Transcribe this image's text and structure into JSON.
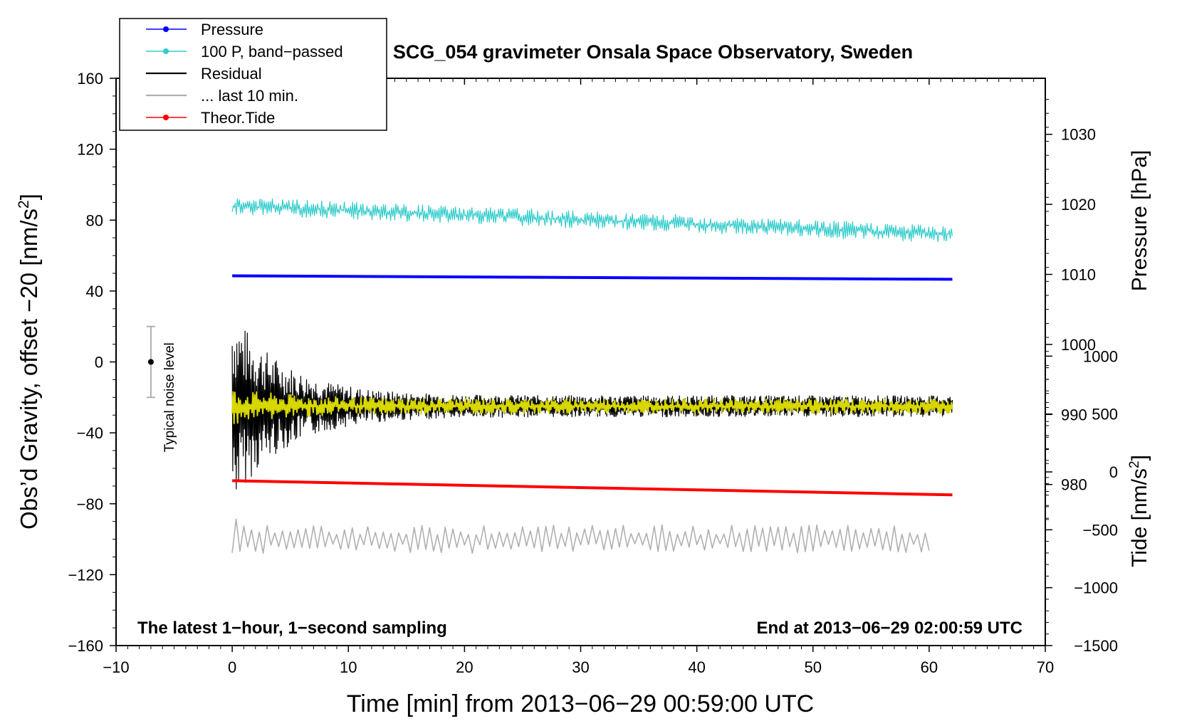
{
  "chart_data": {
    "type": "line",
    "title": "SCG_054 gravimeter Onsala Space Observatory, Sweden",
    "xlabel": "Time [min] from 2013−06−29 00:59:00 UTC",
    "ylabel_left_main": "Obs’d Gravity, offset −20 [nm/s",
    "ylabel_left_sup": "2",
    "ylabel_left_end": "]",
    "ylabel_right_pressure": "Pressure [hPa]",
    "ylabel_right_tide_main": "Tide [nm/s",
    "ylabel_right_tide_sup": "2",
    "ylabel_right_tide_end": "]",
    "xlim": [
      -10,
      70
    ],
    "ylim": [
      -160,
      160
    ],
    "pressure_axis": {
      "min": 957,
      "max": 1038
    },
    "tide_axis": {
      "min": -1500,
      "max": 3400
    },
    "x_ticks": [
      -10,
      0,
      10,
      20,
      30,
      40,
      50,
      60,
      70
    ],
    "x_tick_labels": [
      "−10",
      "0",
      "10",
      "20",
      "30",
      "40",
      "50",
      "60",
      "70"
    ],
    "y_ticks": [
      -160,
      -120,
      -80,
      -40,
      0,
      40,
      80,
      120,
      160
    ],
    "y_tick_labels": [
      "−160",
      "−120",
      "−80",
      "−40",
      "0",
      "40",
      "80",
      "120",
      "160"
    ],
    "pressure_ticks": [
      980,
      990,
      1000,
      1010,
      1020,
      1030
    ],
    "pressure_tick_labels": [
      "980",
      "990",
      "1000",
      "1010",
      "1020",
      "1030"
    ],
    "tide_ticks": [
      -1500,
      -1000,
      -500,
      0,
      500,
      1000
    ],
    "tide_tick_labels": [
      "−1500",
      "−1000",
      "−500",
      "0",
      "500",
      "1000"
    ],
    "legend": [
      {
        "label": "Pressure",
        "color": "#0000ff",
        "marker": true
      },
      {
        "label": "100 P, band−passed",
        "color": "#33cccc",
        "marker": true
      },
      {
        "label": "Residual",
        "color": "#000000",
        "marker": false
      },
      {
        "label": "... last 10 min.",
        "color": "#b0b0b0",
        "marker": false
      },
      {
        "label": "Theor.Tide",
        "color": "#ff0000",
        "marker": true
      }
    ],
    "annotations": {
      "bottom_left": "The latest 1−hour, 1−second sampling",
      "bottom_right": "End at 2013−06−29 02:00:59 UTC",
      "noise_label": "Typical noise level"
    },
    "noise_bar": {
      "x": -7,
      "center": 0,
      "low": -20,
      "high": 20
    },
    "series": [
      {
        "name": "Pressure",
        "axis": "pressure",
        "color": "#0000ff",
        "x_range": [
          0,
          62
        ],
        "start": 1009.8,
        "end": 1009.3
      },
      {
        "name": "100 P, band−passed",
        "axis": "left",
        "color": "#33cccc",
        "x_range": [
          0,
          62
        ],
        "start": 88,
        "end": 72,
        "amplitude": 5
      },
      {
        "name": "Residual",
        "axis": "left",
        "color": "#000000",
        "x_range": [
          0,
          62
        ],
        "mean": -25,
        "initial_amplitude": 55,
        "final_amplitude": 6
      },
      {
        "name": "Residual (smoothed)",
        "axis": "left",
        "color": "#d8d800",
        "x_range": [
          0,
          62
        ],
        "mean": -25,
        "amplitude": 4
      },
      {
        "name": "Theor.Tide",
        "axis": "left",
        "color": "#ff0000",
        "x_range": [
          0,
          62
        ],
        "start": -67,
        "end": -75
      },
      {
        "name": "... last 10 min.",
        "axis": "left",
        "color": "#b0b0b0",
        "x_range": [
          0,
          60
        ],
        "mean": -100,
        "amplitude": 8
      }
    ]
  }
}
